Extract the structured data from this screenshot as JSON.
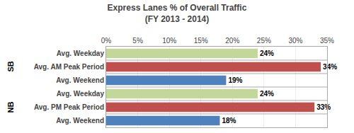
{
  "chart_data": {
    "type": "bar",
    "orientation": "horizontal",
    "title": "Express Lanes % of Overall Traffic\n(FY 2013 - 2014)",
    "categories": [
      "Avg. Weekday",
      "Avg. AM Peak Period",
      "Avg. Weekend",
      "Avg. Weekday",
      "Avg. PM Peak Period",
      "Avg. Weekend"
    ],
    "values": [
      24,
      34,
      19,
      24,
      33,
      18
    ],
    "value_labels": [
      "24%",
      "34%",
      "19%",
      "24%",
      "33%",
      "18%"
    ],
    "colors": [
      "#c4d79b",
      "#c0504d",
      "#4f81bd",
      "#c4d79b",
      "#c0504d",
      "#4f81bd"
    ],
    "xlim": [
      0,
      35
    ],
    "xticks": [
      {
        "value": 0,
        "label": "0%"
      },
      {
        "value": 5,
        "label": "5%"
      },
      {
        "value": 10,
        "label": "10%"
      },
      {
        "value": 15,
        "label": "15%"
      },
      {
        "value": 20,
        "label": "20%"
      },
      {
        "value": 25,
        "label": "25%"
      },
      {
        "value": 30,
        "label": "30%"
      },
      {
        "value": 35,
        "label": "35%"
      }
    ],
    "grid": true,
    "data_labels": true,
    "annotations": [
      "SB",
      "NB"
    ]
  }
}
